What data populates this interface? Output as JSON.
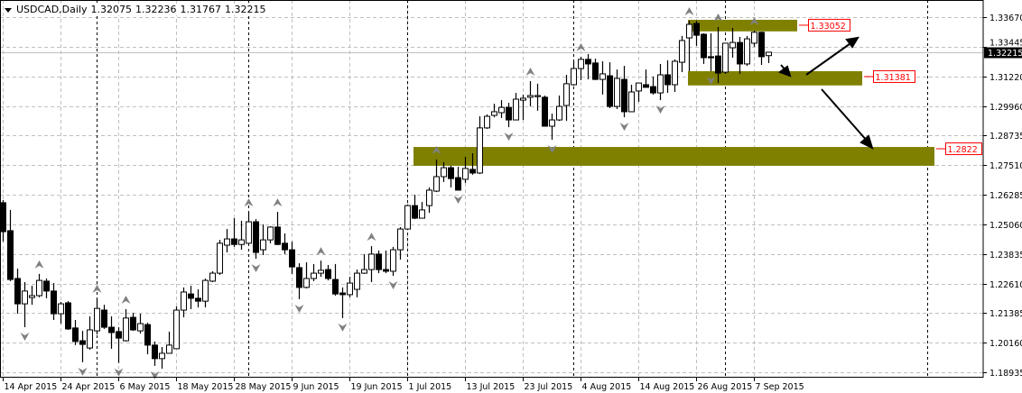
{
  "header": {
    "symbol": "USDCAD,Daily",
    "open": "1.32075",
    "high": "1.32236",
    "low": "1.31767",
    "close": "1.32215"
  },
  "colors": {
    "zone": "#808000",
    "label": "#ff0000",
    "grid": "#c0c0c0",
    "bull_body": "#ffffff",
    "bear_body": "#000000",
    "fractal": "#808080"
  },
  "chart_data": {
    "type": "candlestick",
    "title": "USDCAD,Daily",
    "ylim": [
      1.18935,
      1.3367
    ],
    "grid": true,
    "y_ticks": [
      "1.33670",
      "1.33445",
      "1.31220",
      "1.29960",
      "1.28735",
      "1.27510",
      "1.26285",
      "1.25060",
      "1.23835",
      "1.22610",
      "1.21385",
      "1.20160",
      "1.18935"
    ],
    "x_ticks": [
      "14 Apr 2015",
      "24 Apr 2015",
      "6 May 2015",
      "18 May 2015",
      "28 May 2015",
      "9 Jun 2015",
      "19 Jun 2015",
      "1 Jul 2015",
      "13 Jul 2015",
      "23 Jul 2015",
      "4 Aug 2015",
      "14 Aug 2015",
      "26 Aug 2015",
      "7 Sep 2015"
    ],
    "current_price": "1.32215",
    "candles_ohlc": [
      [
        1.2598,
        1.2609,
        1.2437,
        1.2478
      ],
      [
        1.2482,
        1.2568,
        1.2273,
        1.228
      ],
      [
        1.2284,
        1.2325,
        1.2138,
        1.2179
      ],
      [
        1.2179,
        1.2269,
        1.2082,
        1.2232
      ],
      [
        1.2205,
        1.2254,
        1.2175,
        1.2213
      ],
      [
        1.2213,
        1.2303,
        1.2206,
        1.2276
      ],
      [
        1.2273,
        1.2284,
        1.2202,
        1.2232
      ],
      [
        1.2232,
        1.2265,
        1.2112,
        1.2138
      ],
      [
        1.2138,
        1.2187,
        1.2097,
        1.2179
      ],
      [
        1.2183,
        1.219,
        1.2071,
        1.2075
      ],
      [
        1.2079,
        1.2112,
        1.2008,
        1.2023
      ],
      [
        1.2026,
        1.2067,
        1.1937,
        1.2011
      ],
      [
        1.1996,
        1.2127,
        1.1989,
        1.2071
      ],
      [
        1.2067,
        1.2202,
        1.2052,
        1.216
      ],
      [
        1.2153,
        1.2175,
        1.2075,
        1.2082
      ],
      [
        1.2082,
        1.2127,
        1.1993,
        1.206
      ],
      [
        1.2064,
        1.2082,
        1.1934,
        1.2037
      ],
      [
        1.2026,
        1.2157,
        1.2023,
        1.212
      ],
      [
        1.2123,
        1.2142,
        1.2067,
        1.2071
      ],
      [
        1.2067,
        1.2138,
        1.2056,
        1.2097
      ],
      [
        1.2093,
        1.2101,
        1.197,
        1.2008
      ],
      [
        1.2008,
        1.2023,
        1.1922,
        1.1952
      ],
      [
        1.1952,
        1.2,
        1.191,
        1.1974
      ],
      [
        1.1974,
        1.2064,
        1.1974,
        1.2008
      ],
      [
        1.1993,
        1.2168,
        1.1993,
        1.2153
      ],
      [
        1.2153,
        1.2247,
        1.2123,
        1.2228
      ],
      [
        1.222,
        1.2254,
        1.2157,
        1.2202
      ],
      [
        1.2202,
        1.2239,
        1.2164,
        1.219
      ],
      [
        1.219,
        1.2284,
        1.2164,
        1.2276
      ],
      [
        1.2273,
        1.2314,
        1.2269,
        1.2306
      ],
      [
        1.2306,
        1.2444,
        1.2299,
        1.243
      ],
      [
        1.2422,
        1.2489,
        1.2392,
        1.2448
      ],
      [
        1.2448,
        1.2534,
        1.2415,
        1.2425
      ],
      [
        1.2425,
        1.2523,
        1.2403,
        1.2444
      ],
      [
        1.243,
        1.256,
        1.243,
        1.2519
      ],
      [
        1.2519,
        1.253,
        1.2366,
        1.2392
      ],
      [
        1.2403,
        1.2508,
        1.2381,
        1.2444
      ],
      [
        1.2444,
        1.25,
        1.243,
        1.2497
      ],
      [
        1.2497,
        1.256,
        1.2422,
        1.2425
      ],
      [
        1.243,
        1.2471,
        1.2385,
        1.2403
      ],
      [
        1.2403,
        1.2437,
        1.2303,
        1.2332
      ],
      [
        1.2329,
        1.2347,
        1.2198,
        1.2247
      ],
      [
        1.2247,
        1.2351,
        1.2243,
        1.2284
      ],
      [
        1.2284,
        1.2344,
        1.2273,
        1.2306
      ],
      [
        1.2306,
        1.2358,
        1.2291,
        1.2318
      ],
      [
        1.2321,
        1.234,
        1.2276,
        1.2284
      ],
      [
        1.228,
        1.2344,
        1.2213,
        1.222
      ],
      [
        1.2224,
        1.2247,
        1.212,
        1.2217
      ],
      [
        1.2217,
        1.2291,
        1.2206,
        1.2265
      ],
      [
        1.2239,
        1.2321,
        1.2206,
        1.2306
      ],
      [
        1.2306,
        1.2385,
        1.2303,
        1.2321
      ],
      [
        1.2321,
        1.2418,
        1.2269,
        1.2385
      ],
      [
        1.2385,
        1.24,
        1.2306,
        1.2321
      ],
      [
        1.2321,
        1.24,
        1.2306,
        1.2314
      ],
      [
        1.2314,
        1.2415,
        1.2295,
        1.2403
      ],
      [
        1.2403,
        1.2497,
        1.2362,
        1.2489
      ],
      [
        1.2489,
        1.259,
        1.2489,
        1.2586
      ],
      [
        1.2586,
        1.2631,
        1.253,
        1.2534
      ],
      [
        1.2534,
        1.2601,
        1.2534,
        1.2568
      ],
      [
        1.2586,
        1.2661,
        1.2556,
        1.265
      ],
      [
        1.2646,
        1.2777,
        1.2642,
        1.2706
      ],
      [
        1.2706,
        1.2766,
        1.2684,
        1.2743
      ],
      [
        1.2743,
        1.2751,
        1.2661,
        1.2698
      ],
      [
        1.2702,
        1.2747,
        1.265,
        1.265
      ],
      [
        1.2695,
        1.2788,
        1.268,
        1.274
      ],
      [
        1.2736,
        1.2803,
        1.2714,
        1.2721
      ],
      [
        1.2721,
        1.2956,
        1.2717,
        1.2908
      ],
      [
        1.2908,
        1.2964,
        1.2904,
        1.2956
      ],
      [
        1.296,
        1.3008,
        1.2952,
        1.2975
      ],
      [
        1.2971,
        1.3023,
        1.2949,
        1.2993
      ],
      [
        1.2993,
        1.3012,
        1.2911,
        1.2941
      ],
      [
        1.2941,
        1.3053,
        1.2941,
        1.3027
      ],
      [
        1.3023,
        1.3046,
        1.2941,
        1.3031
      ],
      [
        1.3035,
        1.3102,
        1.2997,
        1.3042
      ],
      [
        1.3038,
        1.3091,
        1.2979,
        1.3042
      ],
      [
        1.3035,
        1.3042,
        1.2915,
        1.2915
      ],
      [
        1.2915,
        1.2967,
        1.2859,
        1.2941
      ],
      [
        1.2941,
        1.3042,
        1.2937,
        1.2997
      ],
      [
        1.3001,
        1.3128,
        1.2937,
        1.3091
      ],
      [
        1.3087,
        1.3184,
        1.3083,
        1.3154
      ],
      [
        1.3154,
        1.3203,
        1.3106,
        1.3192
      ],
      [
        1.3192,
        1.3214,
        1.3109,
        1.3173
      ],
      [
        1.3177,
        1.3195,
        1.3106,
        1.3109
      ],
      [
        1.3109,
        1.3184,
        1.3046,
        1.3132
      ],
      [
        1.3124,
        1.318,
        1.299,
        1.2997
      ],
      [
        1.2997,
        1.315,
        1.2986,
        1.3113
      ],
      [
        1.3109,
        1.3165,
        1.2952,
        1.2975
      ],
      [
        1.2975,
        1.3087,
        1.2975,
        1.3057
      ],
      [
        1.3061,
        1.3094,
        1.3016,
        1.3094
      ],
      [
        1.3087,
        1.315,
        1.3076,
        1.3076
      ],
      [
        1.3079,
        1.3121,
        1.3046,
        1.3053
      ],
      [
        1.3053,
        1.3173,
        1.3023,
        1.3128
      ],
      [
        1.3128,
        1.3188,
        1.3053,
        1.3087
      ],
      [
        1.3087,
        1.3192,
        1.3057,
        1.3184
      ],
      [
        1.318,
        1.3289,
        1.3139,
        1.327
      ],
      [
        1.3281,
        1.3352,
        1.3143,
        1.3337
      ],
      [
        1.3341,
        1.3352,
        1.3248,
        1.3292
      ],
      [
        1.3296,
        1.33,
        1.3173,
        1.3199
      ],
      [
        1.3203,
        1.33,
        1.3143,
        1.3199
      ],
      [
        1.3206,
        1.3326,
        1.3094,
        1.3135
      ],
      [
        1.3139,
        1.3259,
        1.3132,
        1.3259
      ],
      [
        1.324,
        1.3322,
        1.3199,
        1.3262
      ],
      [
        1.3262,
        1.3285,
        1.3132,
        1.3173
      ],
      [
        1.3173,
        1.3289,
        1.3165,
        1.3277
      ],
      [
        1.3259,
        1.3311,
        1.3244,
        1.3304
      ],
      [
        1.3304,
        1.3307,
        1.3169,
        1.3203
      ],
      [
        1.32075,
        1.32236,
        1.31767,
        1.32215
      ]
    ],
    "fractals_up": [
      5,
      13,
      17,
      34,
      38,
      44,
      51,
      60,
      73,
      80,
      95,
      99,
      104
    ],
    "fractals_down": [
      3,
      11,
      16,
      21,
      35,
      41,
      47,
      54,
      63,
      70,
      76,
      86,
      91,
      98
    ],
    "zones": [
      {
        "label": "1.33052",
        "top": 1.3356,
        "bottom": 1.3308,
        "from": "25 Aug 2015",
        "to": "15 Sep 2015"
      },
      {
        "label": "1.31381",
        "top": 1.3143,
        "bottom": 1.3084,
        "from": "25 Aug 2015",
        "to": "28 Sep 2015"
      },
      {
        "label": "1.2822",
        "top": 1.2829,
        "bottom": 1.2751,
        "from": "2 Jul 2015",
        "to": "12 Oct 2015"
      }
    ]
  }
}
